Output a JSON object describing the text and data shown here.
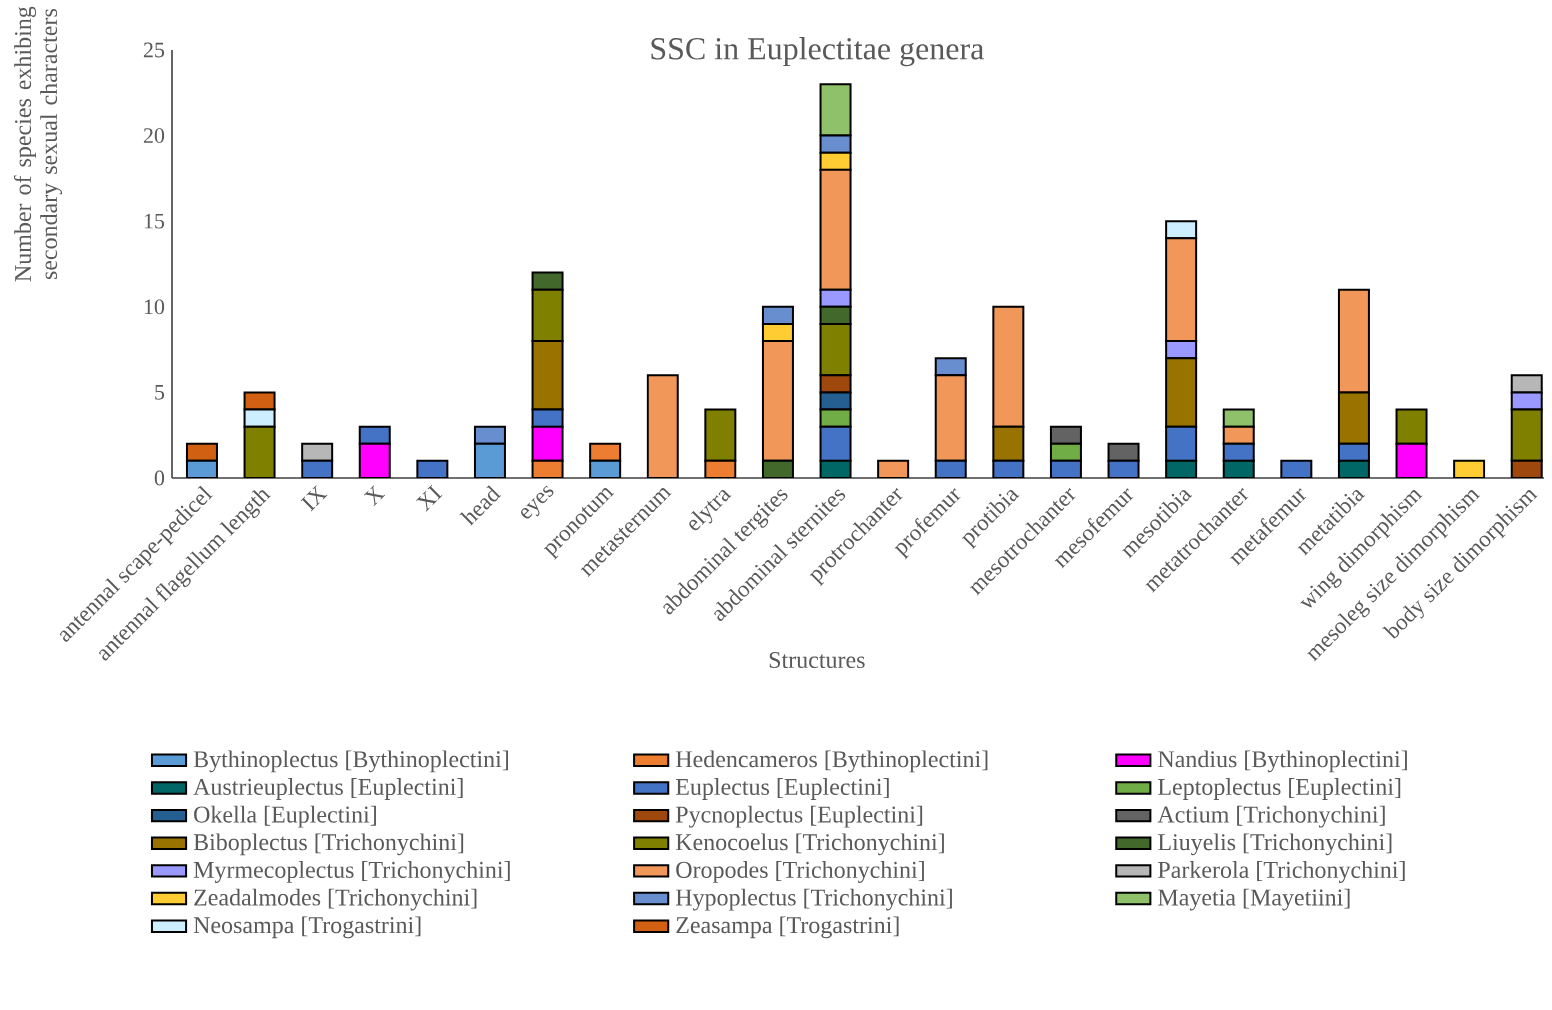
{
  "chart_data": {
    "type": "bar",
    "stacked": true,
    "title": "SSC in Euplectitae genera",
    "xlabel": "Structures",
    "ylabel": "Number of species exhibing secondary sexual characters",
    "categories": [
      "antennal scape-pedicel",
      "antennal flagellum length",
      "IX",
      "X",
      "XI",
      "head",
      "eyes",
      "pronotum",
      "metasternum",
      "elytra",
      "abdominal tergites",
      "abdominal sternites",
      "protrochanter",
      "profemur",
      "protibia",
      "mesotrochanter",
      "mesofemur",
      "mesotibia",
      "metatrochanter",
      "metafemur",
      "metatibia",
      "wing dimorphism",
      "mesoleg size dimorphism",
      "body size dimorphism"
    ],
    "ylim": [
      0,
      25
    ],
    "yticks": [
      0,
      5,
      10,
      15,
      20,
      25
    ],
    "grid": false,
    "legend": "bottom",
    "series": [
      {
        "name": "Bythinoplectus [Bythinoplectini]",
        "color": "#5b9bd5",
        "values": [
          1,
          0,
          0,
          0,
          0,
          2,
          0,
          1,
          0,
          0,
          0,
          0,
          0,
          0,
          0,
          0,
          0,
          0,
          0,
          0,
          0,
          0,
          0,
          0
        ]
      },
      {
        "name": "Hedencameros [Bythinoplectini]",
        "color": "#ed7d31",
        "values": [
          0,
          0,
          0,
          0,
          0,
          0,
          1,
          1,
          0,
          1,
          0,
          0,
          0,
          0,
          0,
          0,
          0,
          0,
          0,
          0,
          0,
          0,
          0,
          0
        ]
      },
      {
        "name": "Nandius [Bythinoplectini]",
        "color": "#ff00ff",
        "values": [
          0,
          0,
          0,
          2,
          0,
          0,
          2,
          0,
          0,
          0,
          0,
          0,
          0,
          0,
          0,
          0,
          0,
          0,
          0,
          0,
          0,
          2,
          0,
          0
        ]
      },
      {
        "name": "Austrieuplectus [Euplectini]",
        "color": "#006666",
        "values": [
          0,
          0,
          0,
          0,
          0,
          0,
          0,
          0,
          0,
          0,
          0,
          1,
          0,
          0,
          0,
          0,
          0,
          1,
          1,
          0,
          1,
          0,
          0,
          0
        ]
      },
      {
        "name": "Euplectus [Euplectini]",
        "color": "#4472c4",
        "values": [
          0,
          0,
          1,
          1,
          1,
          0,
          1,
          0,
          0,
          0,
          0,
          2,
          0,
          1,
          1,
          1,
          1,
          2,
          1,
          1,
          1,
          0,
          0,
          0
        ]
      },
      {
        "name": "Leptoplectus [Euplectini]",
        "color": "#70ad47",
        "values": [
          0,
          0,
          0,
          0,
          0,
          0,
          0,
          0,
          0,
          0,
          0,
          1,
          0,
          0,
          0,
          1,
          0,
          0,
          0,
          0,
          0,
          0,
          0,
          0
        ]
      },
      {
        "name": "Okella [Euplectini]",
        "color": "#255e91",
        "values": [
          0,
          0,
          0,
          0,
          0,
          0,
          0,
          0,
          0,
          0,
          0,
          1,
          0,
          0,
          0,
          0,
          0,
          0,
          0,
          0,
          0,
          0,
          0,
          0
        ]
      },
      {
        "name": "Pycnoplectus [Euplectini]",
        "color": "#9e480e",
        "values": [
          0,
          0,
          0,
          0,
          0,
          0,
          0,
          0,
          0,
          0,
          0,
          1,
          0,
          0,
          0,
          0,
          0,
          0,
          0,
          0,
          0,
          0,
          0,
          1
        ]
      },
      {
        "name": "Actium [Trichonychini]",
        "color": "#636363",
        "values": [
          0,
          0,
          0,
          0,
          0,
          0,
          0,
          0,
          0,
          0,
          0,
          0,
          0,
          0,
          0,
          1,
          1,
          0,
          0,
          0,
          0,
          0,
          0,
          0
        ]
      },
      {
        "name": "Biboplectus [Trichonychini]",
        "color": "#997300",
        "values": [
          0,
          0,
          0,
          0,
          0,
          0,
          4,
          0,
          0,
          0,
          0,
          0,
          0,
          0,
          2,
          0,
          0,
          4,
          0,
          0,
          3,
          0,
          0,
          0
        ]
      },
      {
        "name": "Kenocoelus [Trichonychini]",
        "color": "#808000",
        "values": [
          0,
          3,
          0,
          0,
          0,
          0,
          3,
          0,
          0,
          3,
          0,
          3,
          0,
          0,
          0,
          0,
          0,
          0,
          0,
          0,
          0,
          2,
          0,
          3
        ]
      },
      {
        "name": "Liuyelis [Trichonychini]",
        "color": "#43682b",
        "values": [
          0,
          0,
          0,
          0,
          0,
          0,
          1,
          0,
          0,
          0,
          1,
          1,
          0,
          0,
          0,
          0,
          0,
          0,
          0,
          0,
          0,
          0,
          0,
          0
        ]
      },
      {
        "name": "Myrmecoplectus [Trichonychini]",
        "color": "#9999ff",
        "values": [
          0,
          0,
          0,
          0,
          0,
          0,
          0,
          0,
          0,
          0,
          0,
          1,
          0,
          0,
          0,
          0,
          0,
          1,
          0,
          0,
          0,
          0,
          0,
          1
        ]
      },
      {
        "name": "Oropodes [Trichonychini]",
        "color": "#f1975a",
        "values": [
          0,
          0,
          0,
          0,
          0,
          0,
          0,
          0,
          6,
          0,
          7,
          7,
          1,
          5,
          7,
          0,
          0,
          6,
          1,
          0,
          6,
          0,
          0,
          0
        ]
      },
      {
        "name": "Parkerola [Trichonychini]",
        "color": "#b7b7b7",
        "values": [
          0,
          0,
          1,
          0,
          0,
          0,
          0,
          0,
          0,
          0,
          0,
          0,
          0,
          0,
          0,
          0,
          0,
          0,
          0,
          0,
          0,
          0,
          0,
          1
        ]
      },
      {
        "name": "Zeadalmodes [Trichonychini]",
        "color": "#ffcc33",
        "values": [
          0,
          0,
          0,
          0,
          0,
          0,
          0,
          0,
          0,
          0,
          1,
          1,
          0,
          0,
          0,
          0,
          0,
          0,
          0,
          0,
          0,
          0,
          1,
          0
        ]
      },
      {
        "name": "Hypoplectus [Trichonychini]",
        "color": "#698ed0",
        "values": [
          0,
          0,
          0,
          0,
          0,
          1,
          0,
          0,
          0,
          0,
          1,
          1,
          0,
          1,
          0,
          0,
          0,
          0,
          0,
          0,
          0,
          0,
          0,
          0
        ]
      },
      {
        "name": "Mayetia [Mayetiini]",
        "color": "#8fc16a",
        "values": [
          0,
          0,
          0,
          0,
          0,
          0,
          0,
          0,
          0,
          0,
          0,
          3,
          0,
          0,
          0,
          0,
          0,
          0,
          1,
          0,
          0,
          0,
          0,
          0
        ]
      },
      {
        "name": "Neosampa [Trogastrini]",
        "color": "#cceeff",
        "values": [
          0,
          1,
          0,
          0,
          0,
          0,
          0,
          0,
          0,
          0,
          0,
          0,
          0,
          0,
          0,
          0,
          0,
          1,
          0,
          0,
          0,
          0,
          0,
          0
        ]
      },
      {
        "name": "Zeasampa [Trogastrini]",
        "color": "#d26012",
        "values": [
          1,
          1,
          0,
          0,
          0,
          0,
          0,
          0,
          0,
          0,
          0,
          0,
          0,
          0,
          0,
          0,
          0,
          0,
          0,
          0,
          0,
          0,
          0,
          0
        ]
      }
    ]
  }
}
